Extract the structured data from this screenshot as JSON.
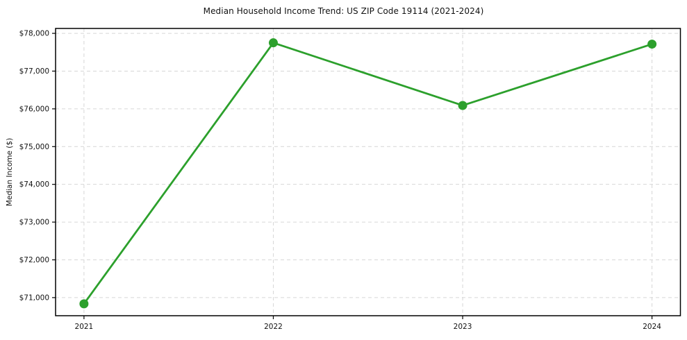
{
  "chart_data": {
    "type": "line",
    "title": "Median Household Income Trend: US ZIP Code 19114 (2021-2024)",
    "xlabel": "",
    "ylabel": "Median Income ($)",
    "categories": [
      "2021",
      "2022",
      "2023",
      "2024"
    ],
    "x": [
      2021,
      2022,
      2023,
      2024
    ],
    "series": [
      {
        "name": "Median household income",
        "values": [
          70835,
          77750,
          76090,
          77715
        ]
      }
    ],
    "xlim": [
      2020.85,
      2024.15
    ],
    "ylim": [
      70520,
      78130
    ],
    "y_ticks": [
      {
        "value": 71000,
        "label": "$71,000"
      },
      {
        "value": 72000,
        "label": "$72,000"
      },
      {
        "value": 73000,
        "label": "$73,000"
      },
      {
        "value": 74000,
        "label": "$74,000"
      },
      {
        "value": 75000,
        "label": "$75,000"
      },
      {
        "value": 76000,
        "label": "$76,000"
      },
      {
        "value": 77000,
        "label": "$77,000"
      },
      {
        "value": 78000,
        "label": "$78,000"
      }
    ],
    "grid": "dashed, horizontal and vertical at ticks",
    "legend": "none",
    "colors": {
      "line": "#2ca02c",
      "marker": "#2ca02c",
      "grid": "#d6d6d6",
      "axis_box": "#000000",
      "text": "#111111",
      "background": "#ffffff"
    }
  }
}
